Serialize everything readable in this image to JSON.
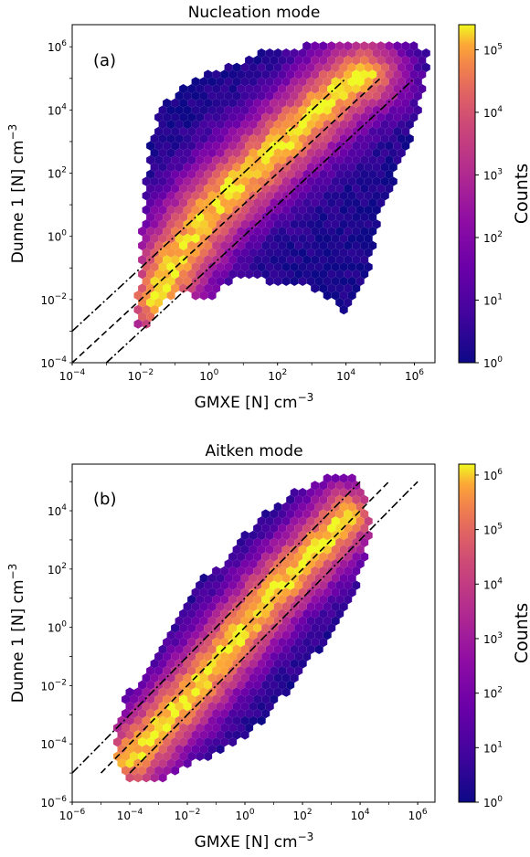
{
  "chart_data": [
    {
      "type": "heatmap",
      "subtype": "hexbin",
      "title": "Nucleation mode",
      "panel_label": "(a)",
      "xlabel": "GMXE [N] cm",
      "ylabel": "Dunne 1 [N] cm",
      "label_unit_exponent": "−3",
      "x_scale": "log",
      "y_scale": "log",
      "xlim_log10": [
        -4,
        6.6
      ],
      "ylim_log10": [
        -4,
        6.7
      ],
      "xticks_log10": [
        -4,
        -2,
        0,
        2,
        4,
        6
      ],
      "yticks_log10": [
        -4,
        -2,
        0,
        2,
        4,
        6
      ],
      "colorbar": {
        "label": "Counts",
        "scale": "log",
        "range_log10": [
          0,
          5.4
        ],
        "ticks_log10": [
          0,
          1,
          2,
          3,
          4,
          5
        ]
      },
      "cloud_outline_log10": [
        [
          -2.2,
          -3.2
        ],
        [
          -2.1,
          -2.2
        ],
        [
          -2.0,
          -0.2
        ],
        [
          -1.8,
          2.5
        ],
        [
          -1.5,
          4.0
        ],
        [
          -0.8,
          4.8
        ],
        [
          0,
          5.2
        ],
        [
          1.5,
          5.8
        ],
        [
          3,
          6.05
        ],
        [
          5,
          6.1
        ],
        [
          6.4,
          6.0
        ],
        [
          6.3,
          4.8
        ],
        [
          6,
          3.5
        ],
        [
          5.5,
          2
        ],
        [
          5,
          0.8
        ],
        [
          4.8,
          -0.5
        ],
        [
          4.6,
          -1.5
        ],
        [
          4,
          -2.4
        ],
        [
          3,
          -1.6
        ],
        [
          2,
          -1.5
        ],
        [
          1,
          -1.2
        ],
        [
          0.3,
          -1.6
        ],
        [
          0,
          -2
        ],
        [
          -0.8,
          -1.8
        ],
        [
          -1.5,
          -2.2
        ],
        [
          -1.8,
          -2.8
        ]
      ],
      "density_ridge_log10": [
        [
          -1.5,
          -2.0
        ],
        [
          -1,
          -0.8
        ],
        [
          0,
          0.8
        ],
        [
          1,
          1.8
        ],
        [
          2,
          2.8
        ],
        [
          3,
          3.8
        ],
        [
          4,
          4.8
        ],
        [
          4.5,
          5.1
        ]
      ],
      "reference_lines": [
        {
          "style": "dashed",
          "description": "1:1",
          "x_log10": [
            -4,
            5
          ],
          "y_log10": [
            -4,
            5
          ]
        },
        {
          "style": "dashdot",
          "description": "10x",
          "x_log10": [
            -4,
            4
          ],
          "y_log10": [
            -3,
            5
          ]
        },
        {
          "style": "dashdot",
          "description": "0.1x",
          "x_log10": [
            -3,
            6
          ],
          "y_log10": [
            -4,
            5
          ]
        }
      ]
    },
    {
      "type": "heatmap",
      "subtype": "hexbin",
      "title": "Aitken mode",
      "panel_label": "(b)",
      "xlabel": "GMXE [N] cm",
      "ylabel": "Dunne 1 [N] cm",
      "label_unit_exponent": "−3",
      "x_scale": "log",
      "y_scale": "log",
      "xlim_log10": [
        -6,
        6.6
      ],
      "ylim_log10": [
        -6,
        5.6
      ],
      "xticks_log10": [
        -6,
        -4,
        -2,
        0,
        2,
        4,
        6
      ],
      "yticks_log10": [
        -6,
        -4,
        -2,
        0,
        2,
        4
      ],
      "colorbar": {
        "label": "Counts",
        "scale": "log",
        "range_log10": [
          0,
          6.2
        ],
        "ticks_log10": [
          0,
          1,
          2,
          3,
          4,
          5,
          6
        ]
      },
      "cloud_outline_log10": [
        [
          -4.5,
          -4.8
        ],
        [
          -4.6,
          -3.8
        ],
        [
          -4.2,
          -2.5
        ],
        [
          -3.2,
          -1
        ],
        [
          -2.4,
          0.5
        ],
        [
          -1.8,
          1.5
        ],
        [
          -1,
          2
        ],
        [
          0,
          3.2
        ],
        [
          1,
          4.2
        ],
        [
          2,
          4.8
        ],
        [
          3,
          5.2
        ],
        [
          3.6,
          5.3
        ],
        [
          4.2,
          4.5
        ],
        [
          4.4,
          3
        ],
        [
          4,
          2
        ],
        [
          3.8,
          1
        ],
        [
          3,
          -0.3
        ],
        [
          2,
          -1.5
        ],
        [
          1,
          -2.8
        ],
        [
          0,
          -3.8
        ],
        [
          -1,
          -4.3
        ],
        [
          -2,
          -4.8
        ],
        [
          -3,
          -5.3
        ],
        [
          -4,
          -5.3
        ]
      ],
      "density_ridge_log10": [
        [
          -4,
          -4.5
        ],
        [
          -3,
          -3.5
        ],
        [
          -2,
          -2.4
        ],
        [
          -1,
          -1.2
        ],
        [
          0,
          0
        ],
        [
          1,
          1.2
        ],
        [
          2,
          2.2
        ],
        [
          3,
          3.2
        ],
        [
          3.5,
          3.8
        ]
      ],
      "reference_lines": [
        {
          "style": "dashed",
          "description": "1:1",
          "x_log10": [
            -5,
            5
          ],
          "y_log10": [
            -5,
            5
          ]
        },
        {
          "style": "dashdot",
          "description": "10x",
          "x_log10": [
            -6,
            4
          ],
          "y_log10": [
            -5,
            5
          ]
        },
        {
          "style": "dashdot",
          "description": "0.1x",
          "x_log10": [
            -4,
            6
          ],
          "y_log10": [
            -5,
            5
          ]
        }
      ]
    }
  ]
}
